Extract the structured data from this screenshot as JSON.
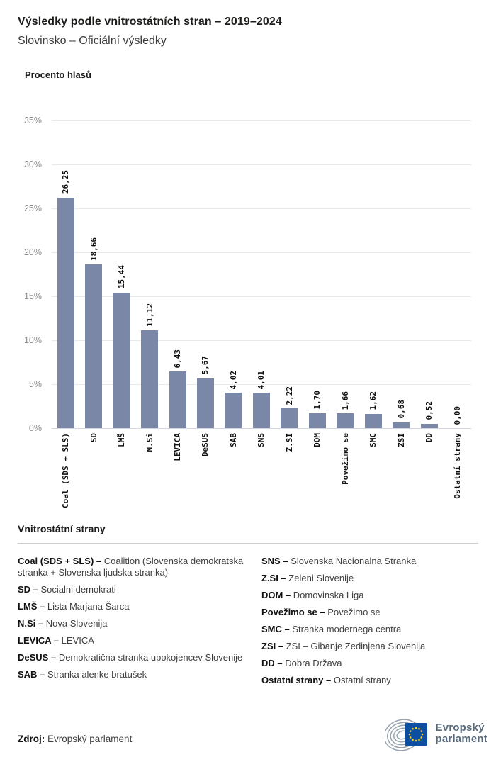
{
  "header": {
    "title": "Výsledky podle vnitrostátních stran – 2019–2024",
    "subtitle": "Slovinsko – Oficiální výsledky"
  },
  "chart_data": {
    "type": "bar",
    "title": "Výsledky podle vnitrostátních stran – 2019–2024",
    "subtitle": "Slovinsko – Oficiální výsledky",
    "ylabel": "Procento hlasů",
    "xlabel": "",
    "ylim": [
      0,
      35
    ],
    "y_ticks": [
      0,
      5,
      10,
      15,
      20,
      25,
      30,
      35
    ],
    "y_tick_suffix": "%",
    "grid": true,
    "legend_position": "none",
    "bar_color": "#7b87a7",
    "categories": [
      "Coal (SDS + SLS)",
      "SD",
      "LMŠ",
      "N.Si",
      "LEVICA",
      "DeSUS",
      "SAB",
      "SNS",
      "Z.SI",
      "DOM",
      "Povežimo se",
      "SMC",
      "ZSI",
      "DD",
      "Ostatní strany"
    ],
    "values": [
      26.25,
      18.66,
      15.44,
      11.12,
      6.43,
      5.67,
      4.02,
      4.01,
      2.22,
      1.7,
      1.66,
      1.62,
      0.68,
      0.52,
      0.0
    ],
    "value_labels": [
      "26,25",
      "18,66",
      "15,44",
      "11,12",
      "6,43",
      "5,67",
      "4,02",
      "4,01",
      "2,22",
      "1,70",
      "1,66",
      "1,62",
      "0,68",
      "0,52",
      "0,00"
    ]
  },
  "legend": {
    "heading": "Vnitrostátní strany",
    "separator": " – ",
    "columns": [
      [
        {
          "abbr": "Coal (SDS + SLS)",
          "name": "Coalition (Slovenska demokratska stranka + Slovenska ljudska stranka)"
        },
        {
          "abbr": "SD",
          "name": "Socialni demokrati"
        },
        {
          "abbr": "LMŠ",
          "name": "Lista Marjana Šarca"
        },
        {
          "abbr": "N.Si",
          "name": "Nova Slovenija"
        },
        {
          "abbr": "LEVICA",
          "name": "LEVICA"
        },
        {
          "abbr": "DeSUS",
          "name": "Demokratična stranka upokojencev Slovenije"
        },
        {
          "abbr": "SAB",
          "name": "Stranka alenke bratušek"
        }
      ],
      [
        {
          "abbr": "SNS",
          "name": "Slovenska Nacionalna Stranka"
        },
        {
          "abbr": "Z.SI",
          "name": "Zeleni Slovenije"
        },
        {
          "abbr": "DOM",
          "name": "Domovinska Liga"
        },
        {
          "abbr": "Povežimo se",
          "name": "Povežimo se"
        },
        {
          "abbr": "SMC",
          "name": "Stranka modernega centra"
        },
        {
          "abbr": "ZSI",
          "name": "ZSI – Gibanje Zedinjena Slovenija"
        },
        {
          "abbr": "DD",
          "name": "Dobra Država"
        },
        {
          "abbr": "Ostatní strany",
          "name": "Ostatní strany"
        }
      ]
    ]
  },
  "footer": {
    "source_label": "Zdroj:",
    "source_text": "Evropský parlament",
    "logo": {
      "line1": "Evropský",
      "line2": "parlament",
      "eu_blue": "#0e4ea1",
      "star_yellow": "#ffd617",
      "arc_gray": "#98a4af"
    }
  }
}
